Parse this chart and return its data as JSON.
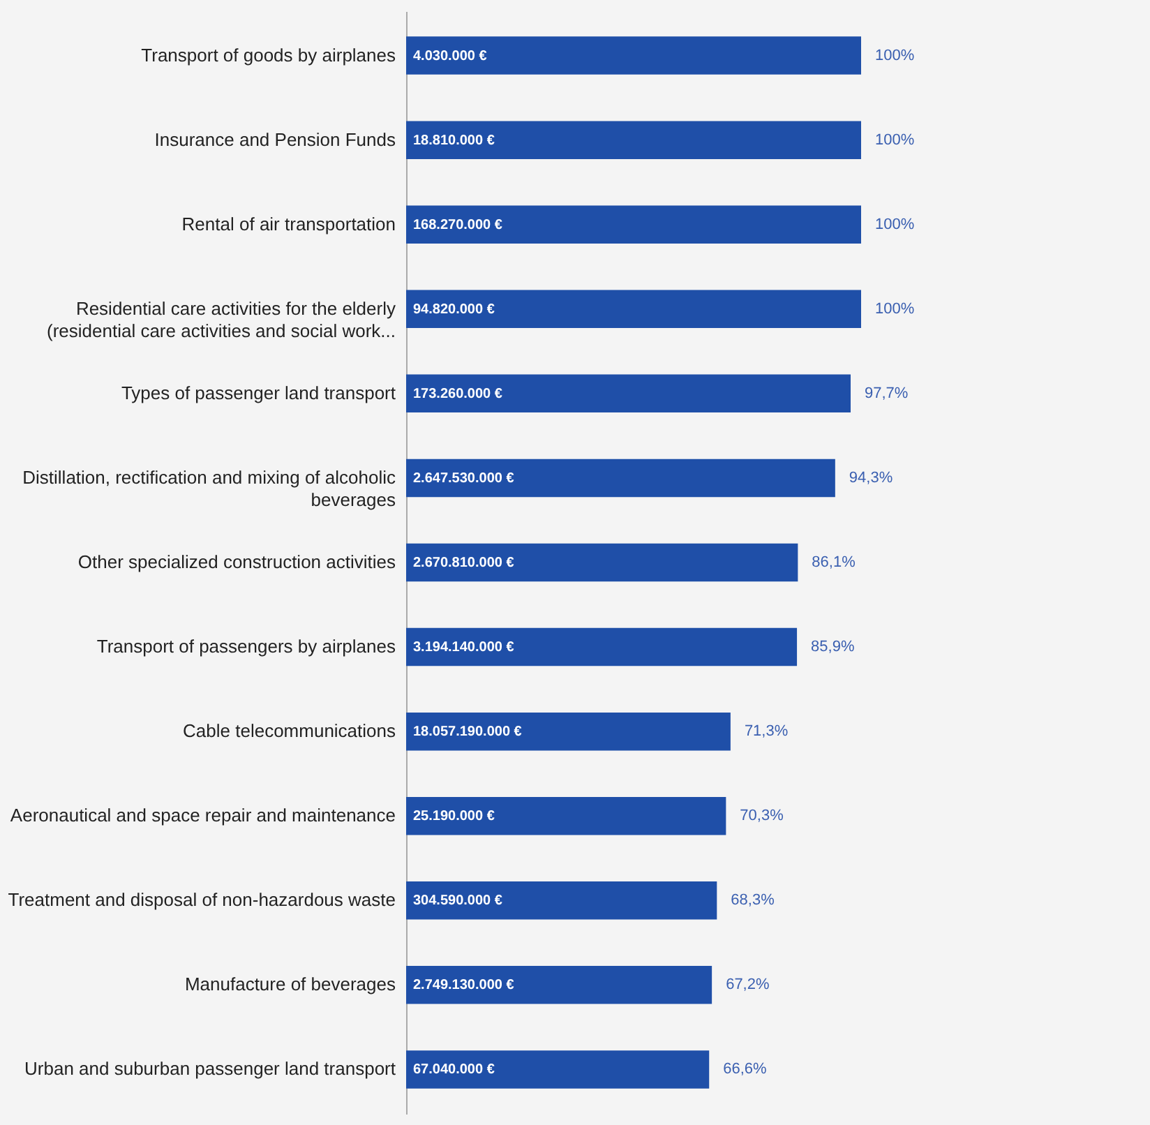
{
  "chart_data": {
    "type": "bar",
    "orientation": "horizontal",
    "color": "#1f4fa8",
    "categories": [
      "Transport of goods by airplanes",
      "Insurance and Pension Funds",
      "Rental of air transportation",
      "Residential care activities for the elderly (residential care activities and social work...",
      "Types of passenger land transport",
      "Distillation, rectification and mixing of alcoholic beverages",
      "Other specialized construction activities",
      "Transport of passengers by airplanes",
      "Cable telecommunications",
      "Aeronautical and space repair and maintenance",
      "Treatment and disposal of non-hazardous waste",
      "Manufacture of beverages",
      "Urban and suburban passenger land transport"
    ],
    "values": [
      100,
      100,
      100,
      100,
      97.7,
      94.3,
      86.1,
      85.9,
      71.3,
      70.3,
      68.3,
      67.2,
      66.6
    ],
    "value_labels": [
      "100%",
      "100%",
      "100%",
      "100%",
      "97,7%",
      "94,3%",
      "86,1%",
      "85,9%",
      "71,3%",
      "70,3%",
      "68,3%",
      "67,2%",
      "66,6%"
    ],
    "annotations": [
      "4.030.000 €",
      "18.810.000 €",
      "168.270.000 €",
      "94.820.000 €",
      "173.260.000 €",
      "2.647.530.000 €",
      "2.670.810.000 €",
      "3.194.140.000 €",
      "18.057.190.000 €",
      "25.190.000 €",
      "304.590.000 €",
      "2.749.130.000 €",
      "67.040.000 €"
    ],
    "tick_labels": "y"
  }
}
